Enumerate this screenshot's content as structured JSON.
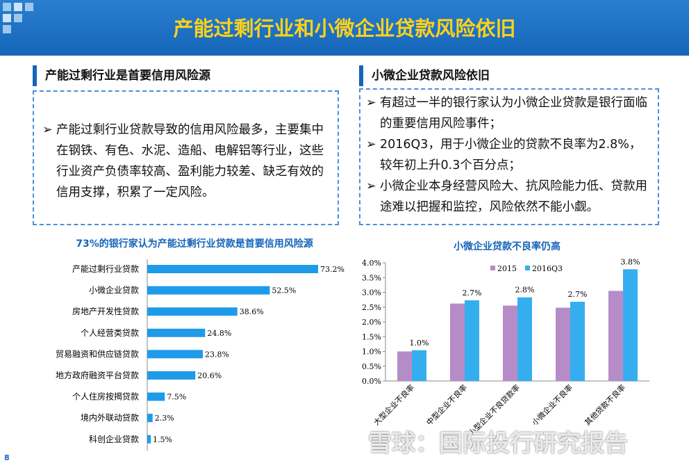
{
  "header": {
    "title": "产能过剩行业和小微企业贷款风险依旧"
  },
  "left": {
    "heading": "产能过剩行业是首要信用风险源",
    "bullets": [
      "产能过剩行业贷款导致的信用风险最多，主要集中在钢铁、有色、水泥、造船、电解铝等行业，这些行业资产负债率较高、盈利能力较差、缺乏有效的信用支撑，积累了一定风险。"
    ]
  },
  "right": {
    "heading": "小微企业贷款风险依旧",
    "bullets": [
      "有超过一半的银行家认为小微企业贷款是银行面临的重要信用风险事件；",
      "2016Q3，用于小微企业的贷款不良率为2.8%，较年初上升0.3个百分点；",
      "小微企业本身经营风险大、抗风险能力低、贷款用途难以把握和监控，风险依然不能小觑。"
    ]
  },
  "chart_data": [
    {
      "type": "hbar",
      "title": "73%的银行家认为产能过剩行业贷款是首要信用风险源",
      "categories": [
        "产能过剩行业贷款",
        "小微企业贷款",
        "房地产开发性贷款",
        "个人经营类贷款",
        "贸易融资和供应链贷款",
        "地方政府融资平台贷款",
        "个人住房按揭贷款",
        "境内外联动贷款",
        "科创企业贷款"
      ],
      "values": [
        73.2,
        52.5,
        38.6,
        24.8,
        23.8,
        20.6,
        7.5,
        2.3,
        1.5
      ],
      "value_labels": [
        "73.2%",
        "52.5%",
        "38.6%",
        "24.8%",
        "23.8%",
        "20.6%",
        "7.5%",
        "2.3%",
        "1.5%"
      ],
      "color": "#1e9be8"
    },
    {
      "type": "grouped-bar",
      "title": "小微企业贷款不良率仍高",
      "categories": [
        "大型企业不良率",
        "中型企业不良率",
        "小型企业不良贷款率",
        "小微企业不良率",
        "其他贷款不良率"
      ],
      "series": [
        {
          "name": "2015",
          "color": "#b68cc8",
          "values": [
            1.0,
            2.62,
            2.55,
            2.48,
            3.05
          ]
        },
        {
          "name": "2016Q3",
          "color": "#35aef0",
          "values": [
            1.04,
            2.73,
            2.83,
            2.68,
            3.78
          ],
          "value_labels": [
            "1.0%",
            "2.7%",
            "2.8%",
            "2.7%",
            "3.8%"
          ]
        }
      ],
      "ylim": [
        0,
        4.0
      ],
      "yticks": [
        {
          "value": 0,
          "label": "0.0%"
        },
        {
          "value": 0.5,
          "label": "0.5%"
        },
        {
          "value": 1.0,
          "label": "1.0%"
        },
        {
          "value": 1.5,
          "label": "1.5%"
        },
        {
          "value": 2.0,
          "label": "2.0%"
        },
        {
          "value": 2.5,
          "label": "2.5%"
        },
        {
          "value": 3.0,
          "label": "3.0%"
        },
        {
          "value": 3.5,
          "label": "3.5%"
        },
        {
          "value": 4.0,
          "label": "4.0%"
        }
      ]
    }
  ],
  "watermark": "雪球：国际投行研究报告",
  "page_number": "8"
}
